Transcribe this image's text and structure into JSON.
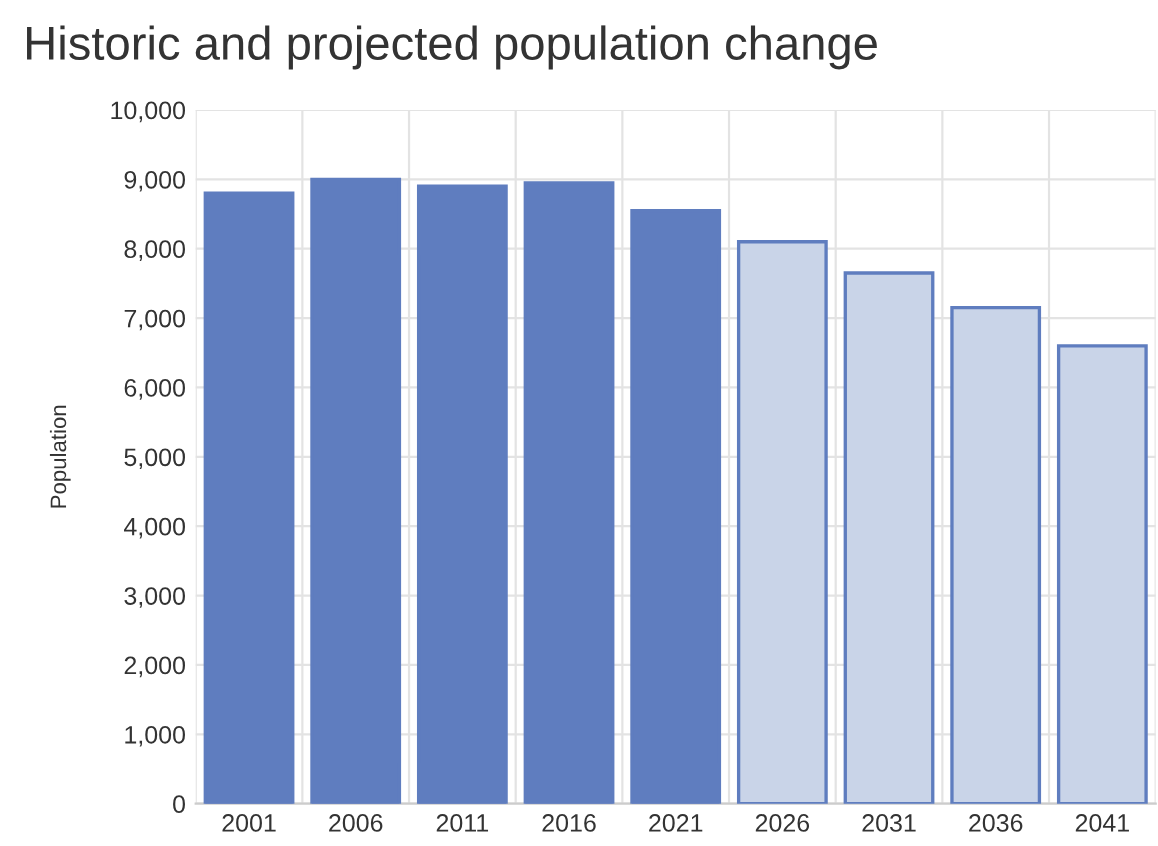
{
  "chart_data": {
    "type": "bar",
    "title": "Historic and projected population change",
    "ylabel": "Population",
    "categories": [
      "2001",
      "2006",
      "2011",
      "2016",
      "2021",
      "2026",
      "2031",
      "2036",
      "2041"
    ],
    "values": [
      8800,
      9000,
      8900,
      8950,
      8550,
      8100,
      7650,
      7150,
      6600
    ],
    "colors": [
      "#5f7dbf",
      "#5f7dbf",
      "#5f7dbf",
      "#5f7dbf",
      "#5f7dbf",
      "#c9d4e8",
      "#c9d4e8",
      "#c9d4e8",
      "#c9d4e8"
    ],
    "ylim": [
      0,
      10000
    ],
    "yticks": [
      {
        "value": 0,
        "label": "0"
      },
      {
        "value": 1000,
        "label": "1,000"
      },
      {
        "value": 2000,
        "label": "2,000"
      },
      {
        "value": 3000,
        "label": "3,000"
      },
      {
        "value": 4000,
        "label": "4,000"
      },
      {
        "value": 5000,
        "label": "5,000"
      },
      {
        "value": 6000,
        "label": "6,000"
      },
      {
        "value": 7000,
        "label": "7,000"
      },
      {
        "value": 8000,
        "label": "8,000"
      },
      {
        "value": 9000,
        "label": "9,000"
      },
      {
        "value": 10000,
        "label": "10,000"
      }
    ],
    "grid": true
  }
}
